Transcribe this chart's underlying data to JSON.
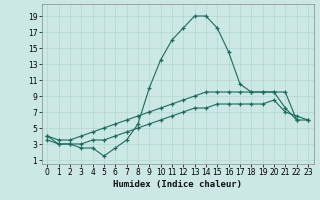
{
  "xlabel": "Humidex (Indice chaleur)",
  "ylabel": "",
  "background_color": "#cce8e4",
  "grid_color": "#b0d8d4",
  "line_color": "#1a6b5e",
  "xlim": [
    -0.5,
    23.5
  ],
  "ylim": [
    0.5,
    20.5
  ],
  "xticks": [
    0,
    1,
    2,
    3,
    4,
    5,
    6,
    7,
    8,
    9,
    10,
    11,
    12,
    13,
    14,
    15,
    16,
    17,
    18,
    19,
    20,
    21,
    22,
    23
  ],
  "yticks": [
    1,
    3,
    5,
    7,
    9,
    11,
    13,
    15,
    17,
    19
  ],
  "line1_x": [
    0,
    1,
    2,
    3,
    4,
    5,
    6,
    7,
    8,
    9,
    10,
    11,
    12,
    13,
    14,
    15,
    16,
    17,
    18,
    19,
    20,
    21,
    22
  ],
  "line1_y": [
    4.0,
    3.0,
    3.0,
    2.5,
    2.5,
    1.5,
    2.5,
    3.5,
    5.5,
    10.0,
    13.5,
    16.0,
    17.5,
    19.0,
    19.0,
    17.5,
    14.5,
    10.5,
    9.5,
    9.5,
    9.5,
    7.5,
    6.0
  ],
  "line2_x": [
    0,
    1,
    2,
    3,
    4,
    5,
    6,
    7,
    8,
    9,
    10,
    11,
    12,
    13,
    14,
    15,
    16,
    17,
    18,
    19,
    20,
    21,
    22,
    23
  ],
  "line2_y": [
    4.0,
    3.5,
    3.5,
    4.0,
    4.5,
    5.0,
    5.5,
    6.0,
    6.5,
    7.0,
    7.5,
    8.0,
    8.5,
    9.0,
    9.5,
    9.5,
    9.5,
    9.5,
    9.5,
    9.5,
    9.5,
    9.5,
    6.0,
    6.0
  ],
  "line3_x": [
    0,
    1,
    2,
    3,
    4,
    5,
    6,
    7,
    8,
    9,
    10,
    11,
    12,
    13,
    14,
    15,
    16,
    17,
    18,
    19,
    20,
    21,
    22,
    23
  ],
  "line3_y": [
    3.5,
    3.0,
    3.0,
    3.0,
    3.5,
    3.5,
    4.0,
    4.5,
    5.0,
    5.5,
    6.0,
    6.5,
    7.0,
    7.5,
    7.5,
    8.0,
    8.0,
    8.0,
    8.0,
    8.0,
    8.5,
    7.0,
    6.5,
    6.0
  ]
}
